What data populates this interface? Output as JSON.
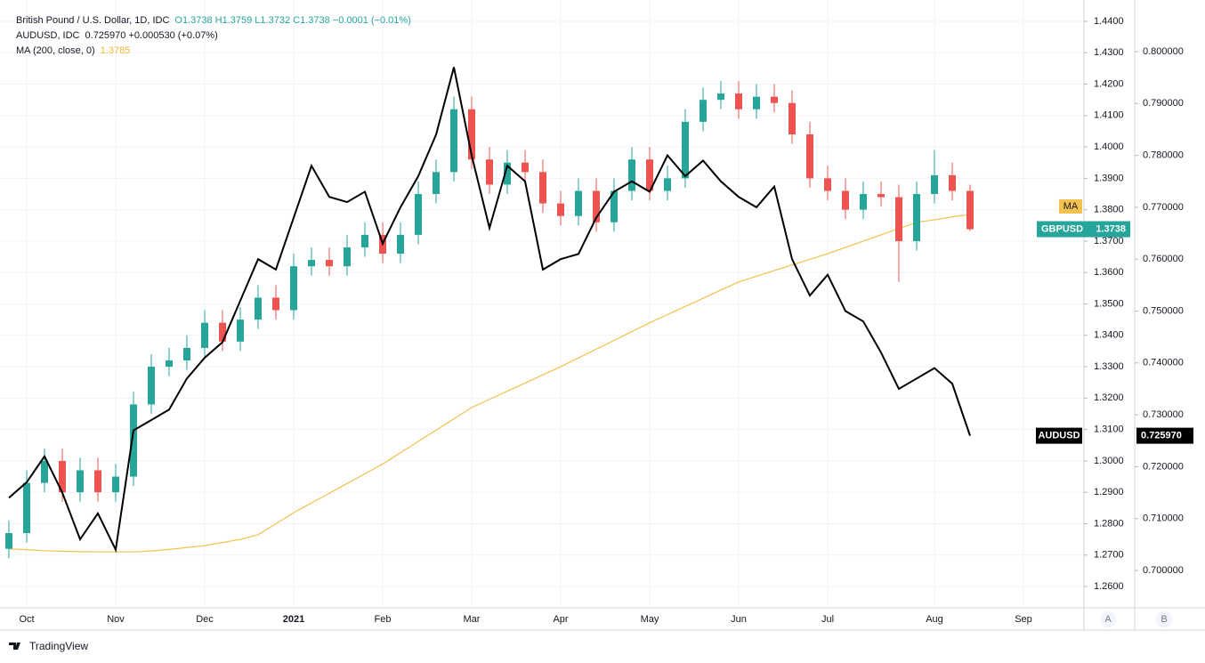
{
  "header": [
    {
      "title": "British Pound / U.S. Dollar, 1D, IDC",
      "values": "O1.3738 H1.3759 L1.3732 C1.3738 −0.0001 (−0.01%)",
      "color": "#26a69a"
    },
    {
      "title": "AUDUSD, IDC",
      "values": "0.725970 +0.000530 (+0.07%)",
      "color": "#131722"
    },
    {
      "title": "MA (200, close, 0)",
      "values": "1.3785",
      "color": "#f2b531"
    }
  ],
  "footer": {
    "brand": "TradingView",
    "scale_buttons": [
      "A",
      "B"
    ]
  },
  "chart_data": {
    "type": "candlestick",
    "name": "GBPUSD",
    "color_up": "#26a69a",
    "color_down": "#ef5350",
    "categories": [
      null,
      "Oct",
      null,
      null,
      null,
      null,
      "Nov",
      null,
      null,
      null,
      null,
      "Dec",
      null,
      null,
      null,
      null,
      "2021",
      null,
      null,
      null,
      null,
      "Feb",
      null,
      null,
      null,
      null,
      "Mar",
      null,
      null,
      null,
      null,
      "Apr",
      null,
      null,
      null,
      null,
      "May",
      null,
      null,
      null,
      null,
      "Jun",
      null,
      null,
      null,
      null,
      "Jul",
      null,
      null,
      null,
      null,
      null,
      "Aug",
      null,
      null,
      null,
      null,
      "Sep"
    ],
    "ohlc": [
      [
        1.272,
        1.281,
        1.269,
        1.277
      ],
      [
        1.277,
        1.297,
        1.274,
        1.293
      ],
      [
        1.293,
        1.304,
        1.29,
        1.3
      ],
      [
        1.3,
        1.304,
        1.287,
        1.29
      ],
      [
        1.29,
        1.301,
        1.287,
        1.297
      ],
      [
        1.297,
        1.301,
        1.287,
        1.29
      ],
      [
        1.29,
        1.299,
        1.287,
        1.295
      ],
      [
        1.295,
        1.322,
        1.292,
        1.318
      ],
      [
        1.318,
        1.334,
        1.315,
        1.33
      ],
      [
        1.33,
        1.336,
        1.327,
        1.332
      ],
      [
        1.332,
        1.34,
        1.329,
        1.336
      ],
      [
        1.336,
        1.348,
        1.333,
        1.344
      ],
      [
        1.344,
        1.348,
        1.335,
        1.338
      ],
      [
        1.338,
        1.349,
        1.335,
        1.345
      ],
      [
        1.345,
        1.356,
        1.342,
        1.352
      ],
      [
        1.352,
        1.356,
        1.345,
        1.348
      ],
      [
        1.348,
        1.366,
        1.345,
        1.362
      ],
      [
        1.362,
        1.368,
        1.359,
        1.364
      ],
      [
        1.364,
        1.368,
        1.359,
        1.362
      ],
      [
        1.362,
        1.372,
        1.359,
        1.368
      ],
      [
        1.368,
        1.376,
        1.365,
        1.372
      ],
      [
        1.372,
        1.376,
        1.363,
        1.366
      ],
      [
        1.366,
        1.376,
        1.363,
        1.372
      ],
      [
        1.372,
        1.389,
        1.369,
        1.385
      ],
      [
        1.385,
        1.396,
        1.382,
        1.392
      ],
      [
        1.392,
        1.416,
        1.389,
        1.412
      ],
      [
        1.412,
        1.416,
        1.393,
        1.396
      ],
      [
        1.396,
        1.4,
        1.385,
        1.388
      ],
      [
        1.388,
        1.399,
        1.385,
        1.395
      ],
      [
        1.395,
        1.399,
        1.389,
        1.392
      ],
      [
        1.392,
        1.396,
        1.379,
        1.382
      ],
      [
        1.382,
        1.386,
        1.375,
        1.378
      ],
      [
        1.378,
        1.39,
        1.375,
        1.386
      ],
      [
        1.386,
        1.39,
        1.373,
        1.376
      ],
      [
        1.376,
        1.39,
        1.373,
        1.386
      ],
      [
        1.386,
        1.4,
        1.383,
        1.396
      ],
      [
        1.396,
        1.4,
        1.383,
        1.386
      ],
      [
        1.386,
        1.394,
        1.383,
        1.39
      ],
      [
        1.39,
        1.412,
        1.387,
        1.408
      ],
      [
        1.408,
        1.419,
        1.405,
        1.415
      ],
      [
        1.415,
        1.421,
        1.412,
        1.417
      ],
      [
        1.417,
        1.421,
        1.409,
        1.412
      ],
      [
        1.412,
        1.42,
        1.409,
        1.416
      ],
      [
        1.416,
        1.42,
        1.411,
        1.414
      ],
      [
        1.414,
        1.418,
        1.401,
        1.404
      ],
      [
        1.404,
        1.408,
        1.387,
        1.39
      ],
      [
        1.39,
        1.394,
        1.383,
        1.386
      ],
      [
        1.386,
        1.39,
        1.377,
        1.38
      ],
      [
        1.38,
        1.389,
        1.377,
        1.385
      ],
      [
        1.385,
        1.389,
        1.381,
        1.384
      ],
      [
        1.384,
        1.388,
        1.357,
        1.37
      ],
      [
        1.37,
        1.389,
        1.367,
        1.385
      ],
      [
        1.385,
        1.399,
        1.382,
        1.391
      ],
      [
        1.391,
        1.395,
        1.383,
        1.386
      ],
      [
        1.386,
        1.388,
        1.3732,
        1.3738
      ],
      null,
      null,
      null
    ],
    "series": [
      {
        "name": "AUDUSD",
        "color": "#000000",
        "axis": "y2",
        "value_label": "0.725970",
        "values": [
          0.714,
          0.717,
          0.722,
          0.715,
          0.706,
          0.711,
          0.704,
          0.727,
          0.729,
          0.731,
          0.737,
          0.741,
          0.744,
          0.752,
          0.76,
          0.758,
          0.768,
          0.778,
          0.772,
          0.771,
          0.773,
          0.763,
          0.77,
          0.776,
          0.784,
          0.797,
          0.78,
          0.766,
          0.778,
          0.775,
          0.758,
          0.76,
          0.761,
          0.768,
          0.773,
          0.775,
          0.773,
          0.78,
          0.776,
          0.779,
          0.775,
          0.772,
          0.77,
          0.774,
          0.76,
          0.753,
          0.757,
          0.75,
          0.748,
          0.742,
          0.735,
          0.737,
          0.739,
          0.736,
          0.72597,
          null,
          null,
          null
        ]
      },
      {
        "name": "MA",
        "color": "#f2c14e",
        "values": [
          1.272,
          1.2717,
          1.2714,
          1.2712,
          1.2711,
          1.271,
          1.271,
          1.271,
          1.2713,
          1.2718,
          1.2724,
          1.273,
          1.274,
          1.275,
          1.2765,
          1.28,
          1.2835,
          1.2866,
          1.2897,
          1.2928,
          1.2959,
          1.299,
          1.3026,
          1.3062,
          1.3098,
          1.3134,
          1.317,
          1.3196,
          1.3222,
          1.3248,
          1.3274,
          1.33,
          1.3328,
          1.3356,
          1.3384,
          1.3412,
          1.344,
          1.3466,
          1.3492,
          1.3518,
          1.3544,
          1.357,
          1.3588,
          1.3606,
          1.3624,
          1.3642,
          1.366,
          1.368,
          1.37,
          1.372,
          1.374,
          1.376,
          1.3768,
          1.3777,
          1.3785,
          null,
          null,
          null
        ]
      }
    ],
    "ylim": [
      1.2532,
      1.4468
    ],
    "yticks": [
      {
        "value": 1.26,
        "label": "1.2600"
      },
      {
        "value": 1.27,
        "label": "1.2700"
      },
      {
        "value": 1.28,
        "label": "1.2800"
      },
      {
        "value": 1.29,
        "label": "1.2900"
      },
      {
        "value": 1.3,
        "label": "1.3000"
      },
      {
        "value": 1.31,
        "label": "1.3100"
      },
      {
        "value": 1.32,
        "label": "1.3200"
      },
      {
        "value": 1.33,
        "label": "1.3300"
      },
      {
        "value": 1.34,
        "label": "1.3400"
      },
      {
        "value": 1.35,
        "label": "1.3500"
      },
      {
        "value": 1.36,
        "label": "1.3600"
      },
      {
        "value": 1.37,
        "label": "1.3700"
      },
      {
        "value": 1.38,
        "label": "1.3800"
      },
      {
        "value": 1.39,
        "label": "1.3900"
      },
      {
        "value": 1.4,
        "label": "1.4000"
      },
      {
        "value": 1.41,
        "label": "1.4100"
      },
      {
        "value": 1.42,
        "label": "1.4200"
      },
      {
        "value": 1.43,
        "label": "1.4300"
      },
      {
        "value": 1.44,
        "label": "1.4400"
      }
    ],
    "y2lim": [
      0.6928,
      0.80995
    ],
    "y2ticks": [
      {
        "value": 0.7,
        "label": "0.700000"
      },
      {
        "value": 0.71,
        "label": "0.710000"
      },
      {
        "value": 0.72,
        "label": "0.720000"
      },
      {
        "value": 0.73,
        "label": "0.730000"
      },
      {
        "value": 0.74,
        "label": "0.740000"
      },
      {
        "value": 0.75,
        "label": "0.750000"
      },
      {
        "value": 0.76,
        "label": "0.760000"
      },
      {
        "value": 0.77,
        "label": "0.770000"
      },
      {
        "value": 0.78,
        "label": "0.780000"
      },
      {
        "value": 0.79,
        "label": "0.790000"
      },
      {
        "value": 0.8,
        "label": "0.800000"
      }
    ],
    "grid": true
  }
}
